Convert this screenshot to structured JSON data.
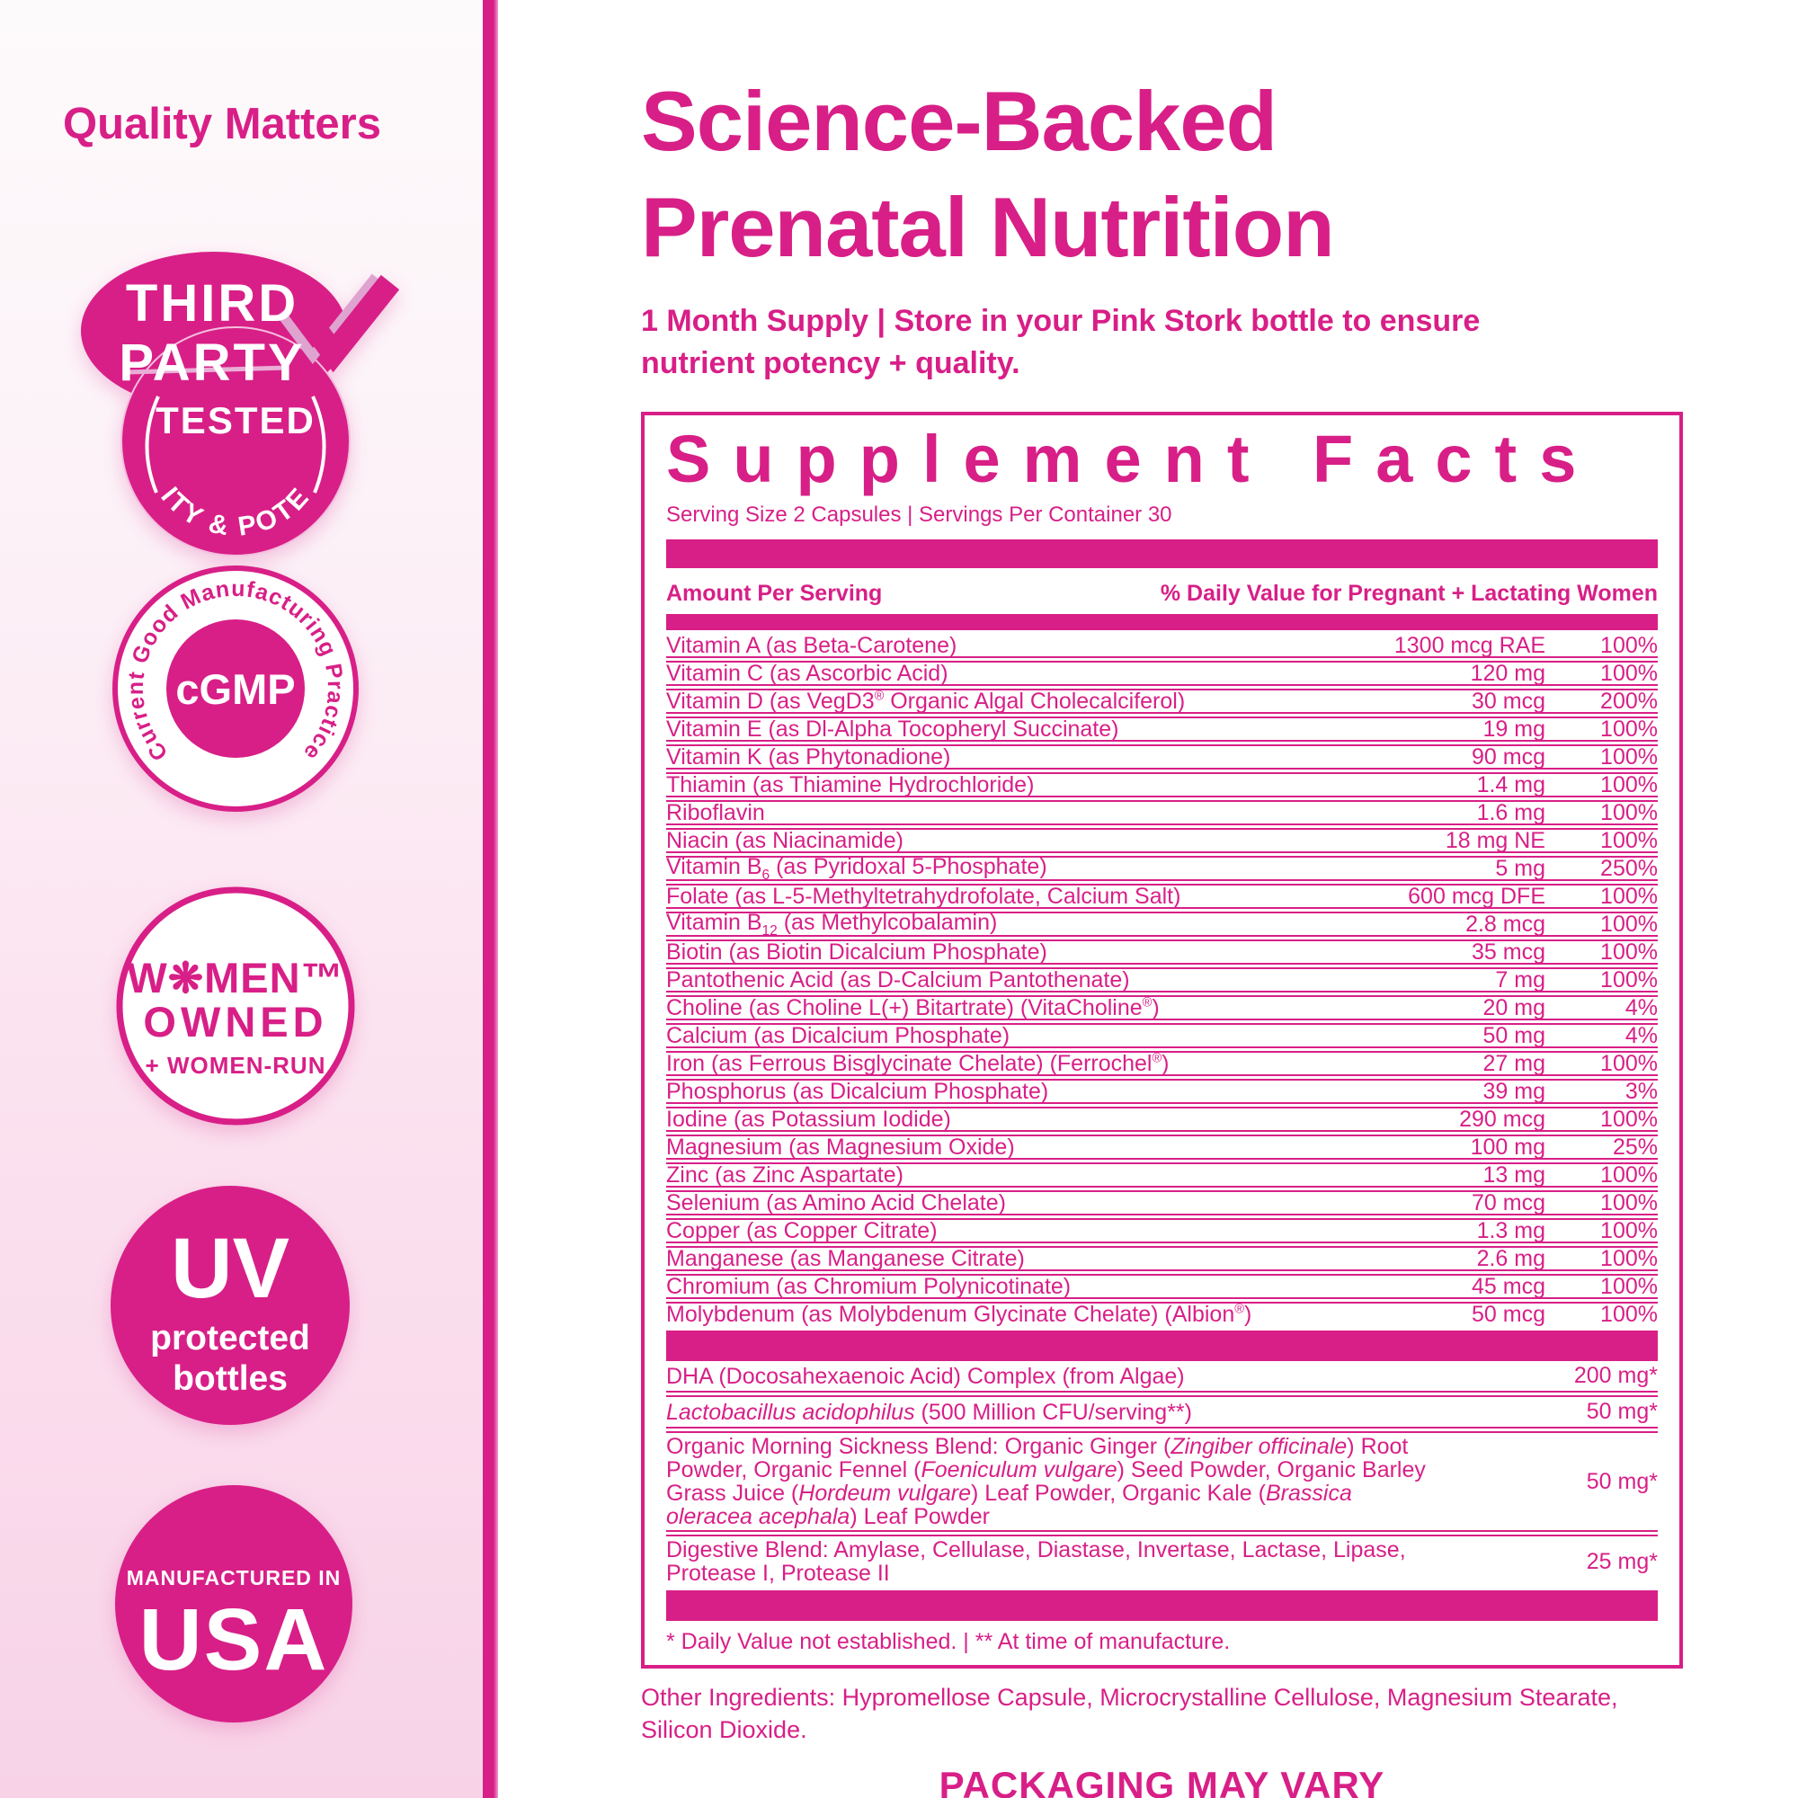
{
  "colors": {
    "brand_pink": "#d81f87",
    "light_pink": "#f8d3e8"
  },
  "left_panel": {
    "heading": "Quality Matters",
    "badges": {
      "third_party": {
        "line1": "THIRD",
        "line2": "PARTY",
        "tested": "TESTED",
        "arc": "PURITY & POTENCY"
      },
      "cgmp": {
        "arc": "Current Good Manufacturing Practice",
        "center": "cGMP"
      },
      "women_owned": {
        "line1": "W❋MEN™",
        "line2": "OWNED",
        "line3": "+ WOMEN-RUN"
      },
      "uv": {
        "line1": "UV",
        "line2": "protected",
        "line3": "bottles"
      },
      "usa": {
        "line1": "MANUFACTURED IN",
        "line2": "USA"
      }
    }
  },
  "header": {
    "title_line1": "Science-Backed",
    "title_line2": "Prenatal Nutrition",
    "subtitle": "1 Month Supply | Store in your Pink Stork bottle to ensure nutrient potency + quality."
  },
  "supplement_facts": {
    "title": "Supplement Facts",
    "serving_info": "Serving Size 2 Capsules | Servings Per Container 30",
    "col_left": "Amount Per Serving",
    "col_right": "% Daily Value for Pregnant + Lactating Women",
    "rows": [
      {
        "name": "Vitamin A (as Beta-Carotene)",
        "amount": "1300 mcg RAE",
        "dv": "100%"
      },
      {
        "name": "Vitamin C (as Ascorbic Acid)",
        "amount": "120 mg",
        "dv": "100%"
      },
      {
        "name": "Vitamin D (as VegD3<sup>®</sup> Organic Algal Cholecalciferol)",
        "amount": "30 mcg",
        "dv": "200%"
      },
      {
        "name": "Vitamin E (as Dl-Alpha Tocopheryl Succinate)",
        "amount": "19 mg",
        "dv": "100%"
      },
      {
        "name": "Vitamin K (as Phytonadione)",
        "amount": "90 mcg",
        "dv": "100%"
      },
      {
        "name": "Thiamin (as Thiamine Hydrochloride)",
        "amount": "1.4 mg",
        "dv": "100%"
      },
      {
        "name": "Riboflavin",
        "amount": "1.6 mg",
        "dv": "100%"
      },
      {
        "name": "Niacin (as Niacinamide)",
        "amount": "18 mg NE",
        "dv": "100%"
      },
      {
        "name": "Vitamin B<sub>6</sub> (as Pyridoxal 5-Phosphate)",
        "amount": "5 mg",
        "dv": "250%"
      },
      {
        "name": "Folate (as L-5-Methyltetrahydrofolate, Calcium Salt)",
        "amount": "600 mcg DFE",
        "dv": "100%"
      },
      {
        "name": "Vitamin B<sub>12</sub> (as Methylcobalamin)",
        "amount": "2.8 mcg",
        "dv": "100%"
      },
      {
        "name": "Biotin (as Biotin Dicalcium Phosphate)",
        "amount": "35 mcg",
        "dv": "100%"
      },
      {
        "name": "Pantothenic Acid (as D-Calcium Pantothenate)",
        "amount": "7 mg",
        "dv": "100%"
      },
      {
        "name": "Choline (as Choline L(+) Bitartrate) (VitaCholine<sup>®</sup>)",
        "amount": "20 mg",
        "dv": "4%"
      },
      {
        "name": "Calcium (as Dicalcium Phosphate)",
        "amount": "50 mg",
        "dv": "4%"
      },
      {
        "name": "Iron (as Ferrous Bisglycinate Chelate) (Ferrochel<sup>®</sup>)",
        "amount": "27 mg",
        "dv": "100%"
      },
      {
        "name": "Phosphorus (as Dicalcium Phosphate)",
        "amount": "39 mg",
        "dv": "3%"
      },
      {
        "name": "Iodine (as Potassium Iodide)",
        "amount": "290 mcg",
        "dv": "100%"
      },
      {
        "name": "Magnesium (as Magnesium Oxide)",
        "amount": "100 mg",
        "dv": "25%"
      },
      {
        "name": "Zinc (as Zinc Aspartate)",
        "amount": "13 mg",
        "dv": "100%"
      },
      {
        "name": "Selenium (as Amino Acid Chelate)",
        "amount": "70 mcg",
        "dv": "100%"
      },
      {
        "name": "Copper (as Copper Citrate)",
        "amount": "1.3 mg",
        "dv": "100%"
      },
      {
        "name": "Manganese (as Manganese Citrate)",
        "amount": "2.6 mg",
        "dv": "100%"
      },
      {
        "name": "Chromium (as Chromium Polynicotinate)",
        "amount": "45 mcg",
        "dv": "100%"
      },
      {
        "name": "Molybdenum (as Molybdenum Glycinate Chelate) (Albion<sup>®</sup>)",
        "amount": "50 mcg",
        "dv": "100%"
      }
    ],
    "blend_rows": [
      {
        "name": "DHA (Docosahexaenoic Acid) Complex (from Algae)",
        "amount": "200 mg*"
      },
      {
        "name": "<i>Lactobacillus acidophilus</i> (500 Million CFU/serving**)",
        "amount": "50 mg*"
      },
      {
        "name": "Organic Morning Sickness Blend: Organic Ginger (<i>Zingiber officinale</i>) Root Powder, Organic Fennel (<i>Foeniculum vulgare</i>) Seed Powder, Organic Barley Grass Juice (<i>Hordeum vulgare</i>) Leaf Powder, Organic Kale (<i>Brassica oleracea acephala</i>) Leaf Powder",
        "amount": "50 mg*"
      },
      {
        "name": "Digestive Blend: Amylase, Cellulase, Diastase, Invertase, Lactase, Lipase, Protease I, Protease II",
        "amount": "25 mg*"
      }
    ],
    "footnote": "* Daily Value not established. | ** At time of manufacture."
  },
  "footer": {
    "other_ingredients": "Other Ingredients: Hypromellose Capsule, Microcrystalline Cellulose, Magnesium Stearate, Silicon Dioxide.",
    "packaging_note": "PACKAGING MAY VARY"
  }
}
